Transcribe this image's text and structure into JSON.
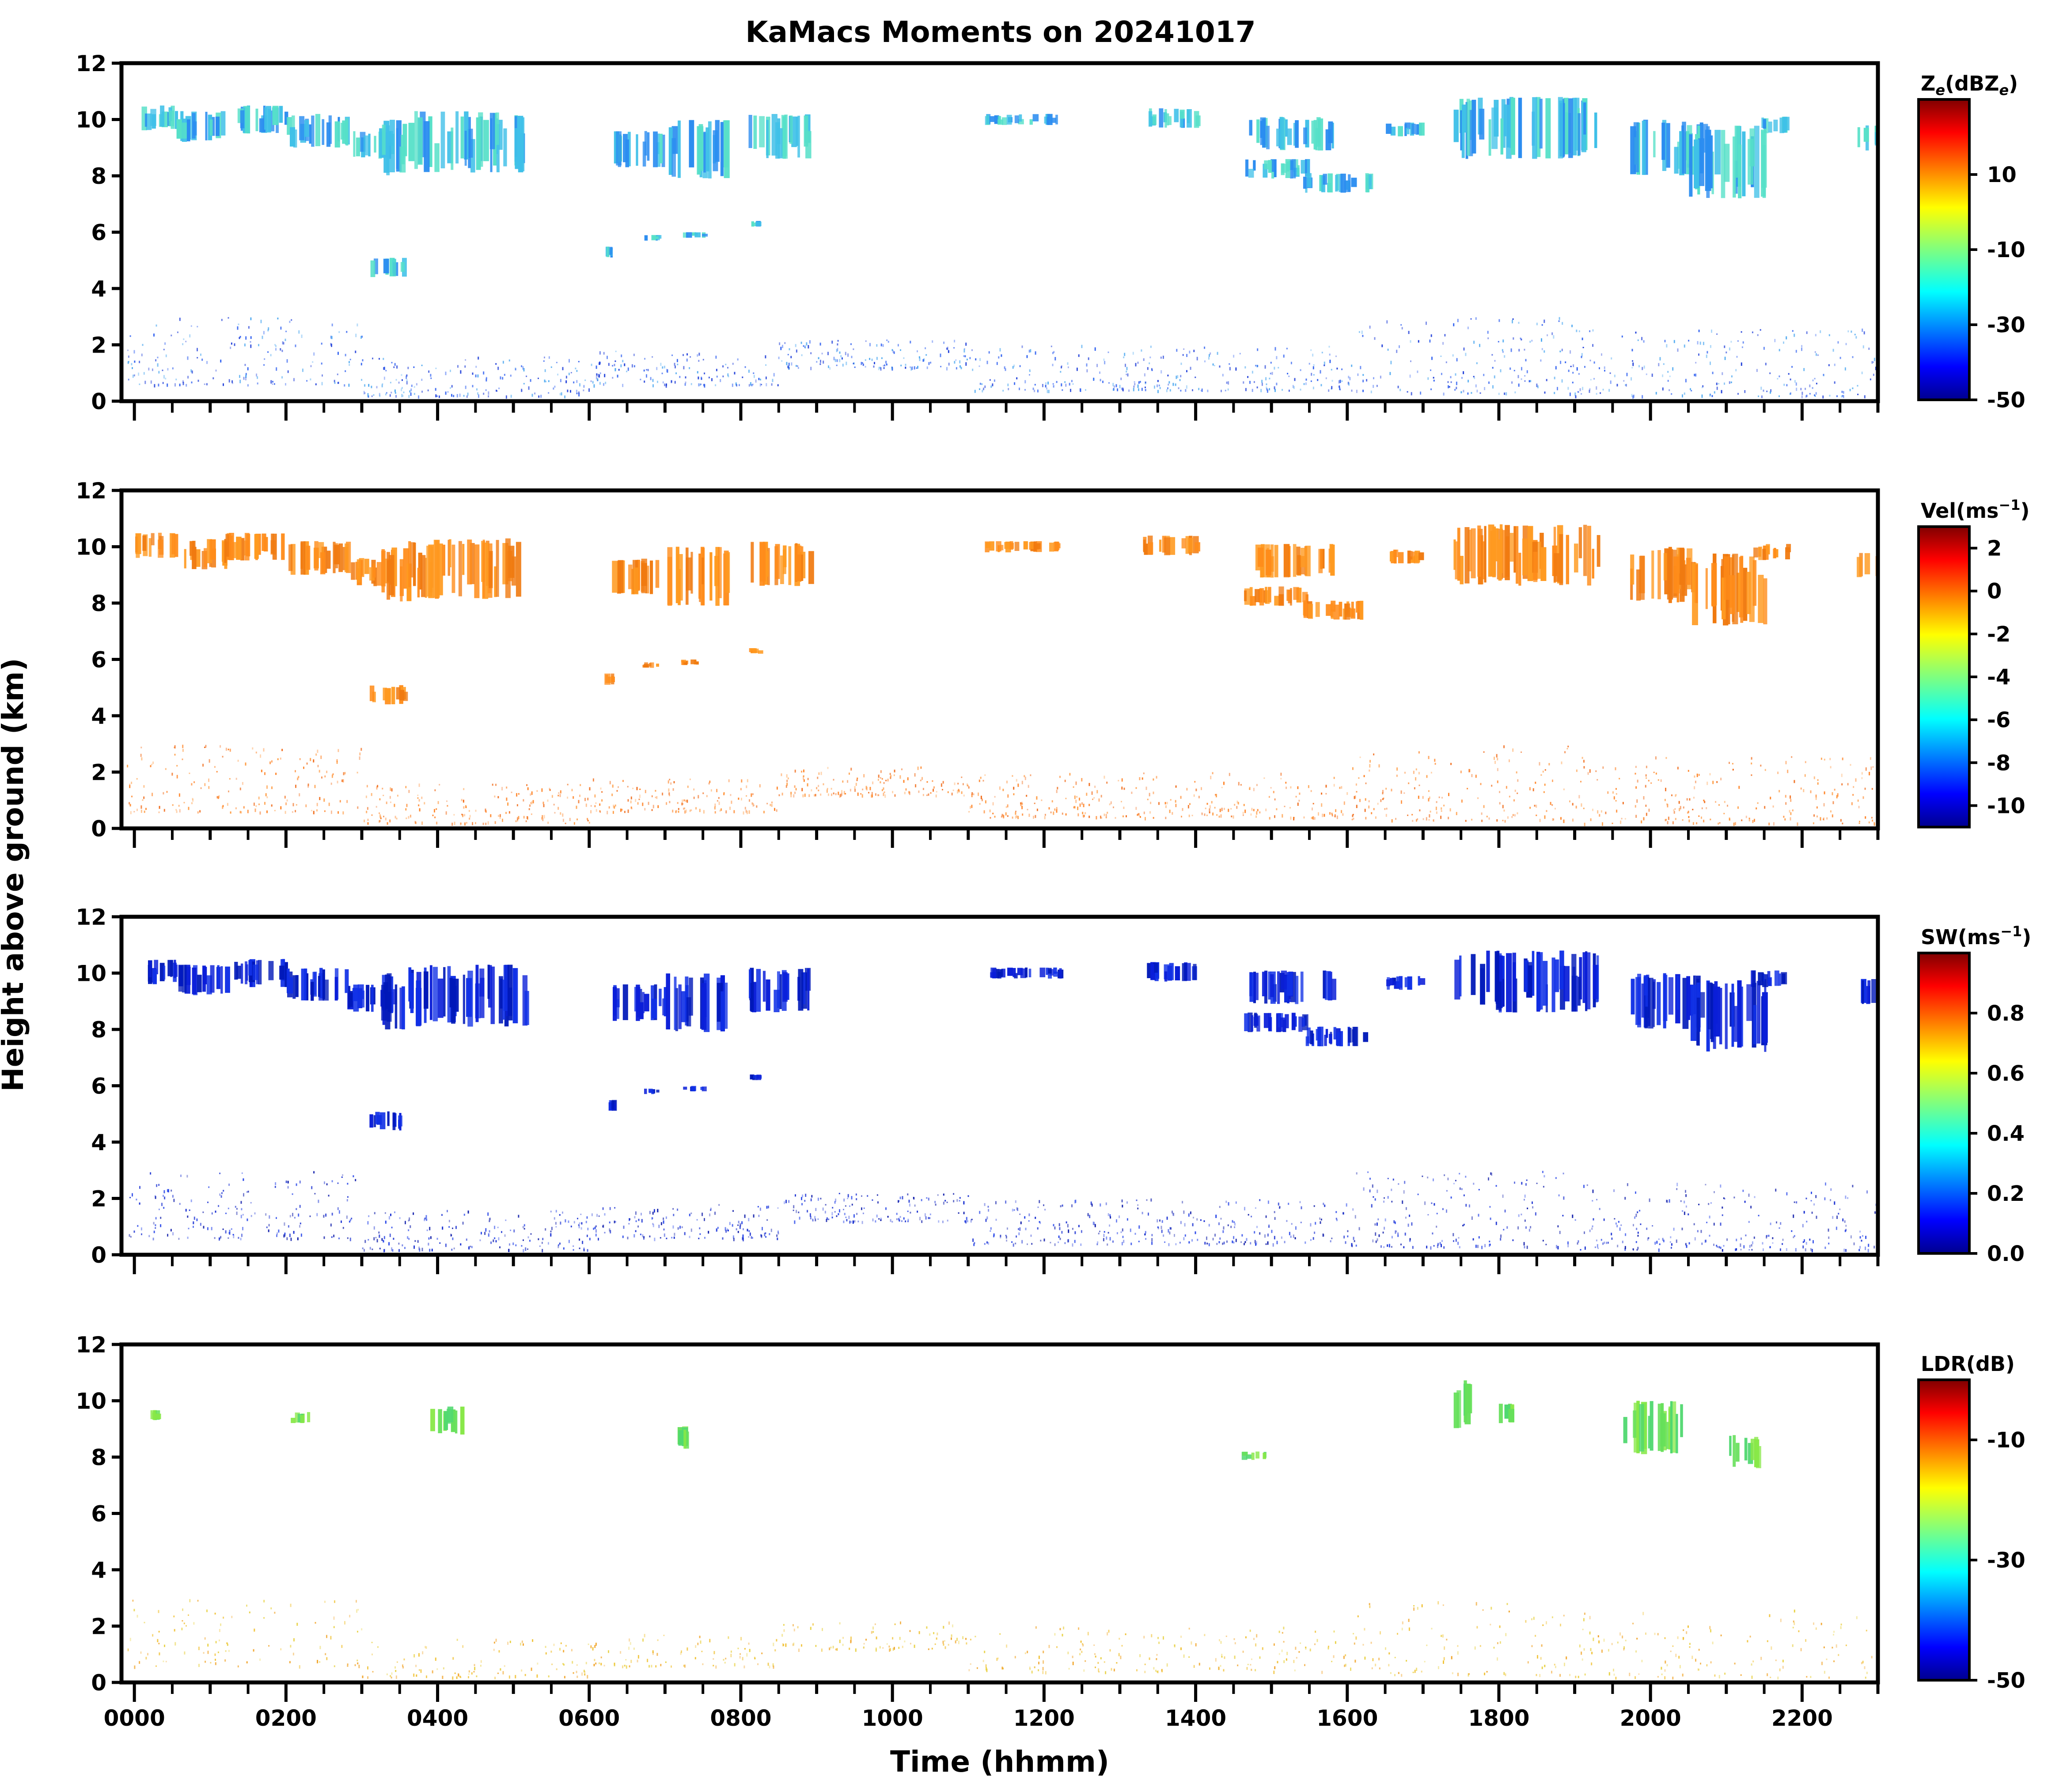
{
  "figure": {
    "title": "KaMacs Moments on 20241017",
    "xlabel": "Time (hhmm)",
    "ylabel": "Height above ground (km)"
  },
  "chart_data": [
    {
      "type": "heatmap",
      "moment": "Ze",
      "colorbar_label": "Ze(dBZe)",
      "colorbar_label_main": "Z",
      "colorbar_label_sub": "e",
      "colorbar_label_unit_open": "(dBZ",
      "colorbar_label_unit_sub": "e",
      "colorbar_label_unit_close": ")",
      "colorbar_range": [
        -50,
        30
      ],
      "colorbar_ticks": [
        "10",
        "-10",
        "-30",
        "-50"
      ],
      "colorbar_tick_values": [
        10,
        -10,
        -30,
        -50
      ],
      "xlim": [
        -0.17,
        23.0
      ],
      "ylim": [
        0,
        12
      ],
      "yticks": [
        "0",
        "2",
        "4",
        "6",
        "8",
        "10",
        "12"
      ],
      "ytick_values": [
        0,
        2,
        4,
        6,
        8,
        10,
        12
      ],
      "xticks": [
        "0000",
        "0200",
        "0400",
        "0600",
        "0800",
        "1000",
        "1200",
        "1400",
        "1600",
        "1800",
        "2000",
        "2200"
      ],
      "xtick_values": [
        0,
        2,
        4,
        6,
        8,
        10,
        12,
        14,
        16,
        18,
        20,
        22
      ],
      "show_xticklabels": false,
      "cloud_value": -28,
      "cloud_colors": [
        "#2a8cf0",
        "#3fc0e8",
        "#56e0c8"
      ],
      "clutter_colors": [
        "#2a5cf0",
        "#4da8f0",
        "#1a3ad8"
      ]
    },
    {
      "type": "heatmap",
      "moment": "Vel",
      "colorbar_label": "Vel(ms-1)",
      "colorbar_label_main": "Vel(ms",
      "colorbar_label_sup": "−1",
      "colorbar_label_close": ")",
      "colorbar_range": [
        -11,
        3
      ],
      "colorbar_ticks": [
        "2",
        "0",
        "-2",
        "-4",
        "-6",
        "-8",
        "-10"
      ],
      "colorbar_tick_values": [
        2,
        0,
        -2,
        -4,
        -6,
        -8,
        -10
      ],
      "xlim": [
        -0.17,
        23.0
      ],
      "ylim": [
        0,
        12
      ],
      "yticks": [
        "0",
        "2",
        "4",
        "6",
        "8",
        "10",
        "12"
      ],
      "ytick_values": [
        0,
        2,
        4,
        6,
        8,
        10,
        12
      ],
      "xticks": [
        "0000",
        "0200",
        "0400",
        "0600",
        "0800",
        "1000",
        "1200",
        "1400",
        "1600",
        "1800",
        "2000",
        "2200"
      ],
      "xtick_values": [
        0,
        2,
        4,
        6,
        8,
        10,
        12,
        14,
        16,
        18,
        20,
        22
      ],
      "show_xticklabels": false,
      "cloud_value": -1,
      "cloud_colors": [
        "#ff8c1a",
        "#ff9a20",
        "#f07a10"
      ],
      "clutter_colors": [
        "#ff8020",
        "#f06a18",
        "#ff9a40"
      ]
    },
    {
      "type": "heatmap",
      "moment": "SW",
      "colorbar_label": "SW(ms-1)",
      "colorbar_label_main": "SW(ms",
      "colorbar_label_sup": "−1",
      "colorbar_label_close": ")",
      "colorbar_range": [
        0,
        1.0
      ],
      "colorbar_ticks": [
        "0.8",
        "0.6",
        "0.4",
        "0.2",
        "0.0"
      ],
      "colorbar_tick_values": [
        0.8,
        0.6,
        0.4,
        0.2,
        0.0
      ],
      "xlim": [
        -0.17,
        23.0
      ],
      "ylim": [
        0,
        12
      ],
      "yticks": [
        "0",
        "2",
        "4",
        "6",
        "8",
        "10",
        "12"
      ],
      "ytick_values": [
        0,
        2,
        4,
        6,
        8,
        10,
        12
      ],
      "xticks": [
        "0000",
        "0200",
        "0400",
        "0600",
        "0800",
        "1000",
        "1200",
        "1400",
        "1600",
        "1800",
        "2000",
        "2200"
      ],
      "xtick_values": [
        0,
        2,
        4,
        6,
        8,
        10,
        12,
        14,
        16,
        18,
        20,
        22
      ],
      "show_xticklabels": false,
      "cloud_value": 0.05,
      "cloud_colors": [
        "#0a1ed8",
        "#1030e6",
        "#0018b8"
      ],
      "clutter_colors": [
        "#1028d0",
        "#2040e8",
        "#0a18a8"
      ]
    },
    {
      "type": "heatmap",
      "moment": "LDR",
      "colorbar_label": "LDR(dB)",
      "colorbar_label_main": "LDR(dB)",
      "colorbar_range": [
        -50,
        0
      ],
      "colorbar_ticks": [
        "-10",
        "-30",
        "-50"
      ],
      "colorbar_tick_values": [
        -10,
        -30,
        -50
      ],
      "xlim": [
        -0.17,
        23.0
      ],
      "ylim": [
        0,
        12
      ],
      "yticks": [
        "0",
        "2",
        "4",
        "6",
        "8",
        "10",
        "12"
      ],
      "ytick_values": [
        0,
        2,
        4,
        6,
        8,
        10,
        12
      ],
      "xticks": [
        "0000",
        "0200",
        "0400",
        "0600",
        "0800",
        "1000",
        "1200",
        "1400",
        "1600",
        "1800",
        "2000",
        "2200"
      ],
      "xtick_values": [
        0,
        2,
        4,
        6,
        8,
        10,
        12,
        14,
        16,
        18,
        20,
        22
      ],
      "show_xticklabels": true,
      "cloud_value": -25,
      "cloud_colors": [
        "#66e05a",
        "#88e848",
        "#50d870"
      ],
      "clutter_colors": [
        "#f0c030",
        "#e8d040",
        "#f0a020"
      ]
    }
  ],
  "echoes": {
    "upper_cloud_features": [
      {
        "t0": 0.0,
        "t1": 0.55,
        "z0": 9.6,
        "z1": 10.5
      },
      {
        "t0": 0.55,
        "t1": 1.2,
        "z0": 9.2,
        "z1": 10.3
      },
      {
        "t0": 1.2,
        "t1": 2.0,
        "z0": 9.5,
        "z1": 10.5
      },
      {
        "t0": 2.0,
        "t1": 2.8,
        "z0": 9.0,
        "z1": 10.2
      },
      {
        "t0": 2.8,
        "t1": 3.4,
        "z0": 8.6,
        "z1": 9.6
      },
      {
        "t0": 3.2,
        "t1": 3.6,
        "z0": 8.0,
        "z1": 10.0
      },
      {
        "t0": 3.6,
        "t1": 5.2,
        "z0": 8.1,
        "z1": 10.3
      },
      {
        "t0": 6.3,
        "t1": 7.0,
        "z0": 8.3,
        "z1": 9.6
      },
      {
        "t0": 7.0,
        "t1": 7.8,
        "z0": 7.9,
        "z1": 10.0
      },
      {
        "t0": 8.1,
        "t1": 8.9,
        "z0": 8.6,
        "z1": 10.2
      },
      {
        "t0": 11.2,
        "t1": 12.2,
        "z0": 9.8,
        "z1": 10.2
      },
      {
        "t0": 13.3,
        "t1": 14.0,
        "z0": 9.7,
        "z1": 10.4
      },
      {
        "t0": 14.7,
        "t1": 15.8,
        "z0": 8.9,
        "z1": 10.1
      },
      {
        "t0": 14.6,
        "t1": 15.5,
        "z0": 7.9,
        "z1": 8.6
      },
      {
        "t0": 15.4,
        "t1": 16.3,
        "z0": 7.4,
        "z1": 8.1
      },
      {
        "t0": 16.5,
        "t1": 17.0,
        "z0": 9.4,
        "z1": 9.9
      },
      {
        "t0": 17.4,
        "t1": 19.3,
        "z0": 8.6,
        "z1": 10.8
      },
      {
        "t0": 19.7,
        "t1": 20.7,
        "z0": 8.0,
        "z1": 10.0
      },
      {
        "t0": 20.5,
        "t1": 21.5,
        "z0": 7.2,
        "z1": 9.8
      },
      {
        "t0": 21.3,
        "t1": 21.8,
        "z0": 9.5,
        "z1": 10.1
      },
      {
        "t0": 22.7,
        "t1": 23.0,
        "z0": 8.9,
        "z1": 9.8
      }
    ],
    "small_features": [
      {
        "t0": 3.1,
        "t1": 3.55,
        "z0": 4.4,
        "z1": 5.1
      },
      {
        "t0": 6.2,
        "t1": 6.3,
        "z0": 5.1,
        "z1": 5.5
      },
      {
        "t0": 6.7,
        "t1": 6.9,
        "z0": 5.7,
        "z1": 5.9
      },
      {
        "t0": 7.2,
        "t1": 7.5,
        "z0": 5.8,
        "z1": 6.0
      },
      {
        "t0": 8.1,
        "t1": 8.25,
        "z0": 6.2,
        "z1": 6.4
      }
    ],
    "ldr_features": [
      {
        "t0": 0.2,
        "t1": 0.3,
        "z0": 9.3,
        "z1": 9.7
      },
      {
        "t0": 2.0,
        "t1": 2.3,
        "z0": 9.2,
        "z1": 9.6
      },
      {
        "t0": 3.9,
        "t1": 4.3,
        "z0": 8.8,
        "z1": 9.8
      },
      {
        "t0": 7.1,
        "t1": 7.3,
        "z0": 8.3,
        "z1": 9.1
      },
      {
        "t0": 14.6,
        "t1": 14.9,
        "z0": 7.9,
        "z1": 8.2
      },
      {
        "t0": 17.4,
        "t1": 17.6,
        "z0": 9.0,
        "z1": 10.8
      },
      {
        "t0": 17.9,
        "t1": 18.2,
        "z0": 9.2,
        "z1": 9.9
      },
      {
        "t0": 19.6,
        "t1": 20.4,
        "z0": 8.1,
        "z1": 10.0
      },
      {
        "t0": 21.0,
        "t1": 21.4,
        "z0": 7.6,
        "z1": 8.8
      }
    ],
    "boundary_layer_bands": [
      {
        "t0": -0.1,
        "t1": 3.0,
        "z0": 0.6,
        "z1": 3.0
      },
      {
        "t0": 3.0,
        "t1": 6.0,
        "z0": 0.2,
        "z1": 1.6
      },
      {
        "t0": 6.0,
        "t1": 8.5,
        "z0": 0.6,
        "z1": 1.8
      },
      {
        "t0": 8.5,
        "t1": 11.0,
        "z0": 1.2,
        "z1": 2.2
      },
      {
        "t0": 11.0,
        "t1": 16.0,
        "z0": 0.4,
        "z1": 2.0
      },
      {
        "t0": 16.0,
        "t1": 19.0,
        "z0": 0.3,
        "z1": 3.0
      },
      {
        "t0": 19.0,
        "t1": 23.0,
        "z0": 0.2,
        "z1": 2.6
      }
    ]
  }
}
